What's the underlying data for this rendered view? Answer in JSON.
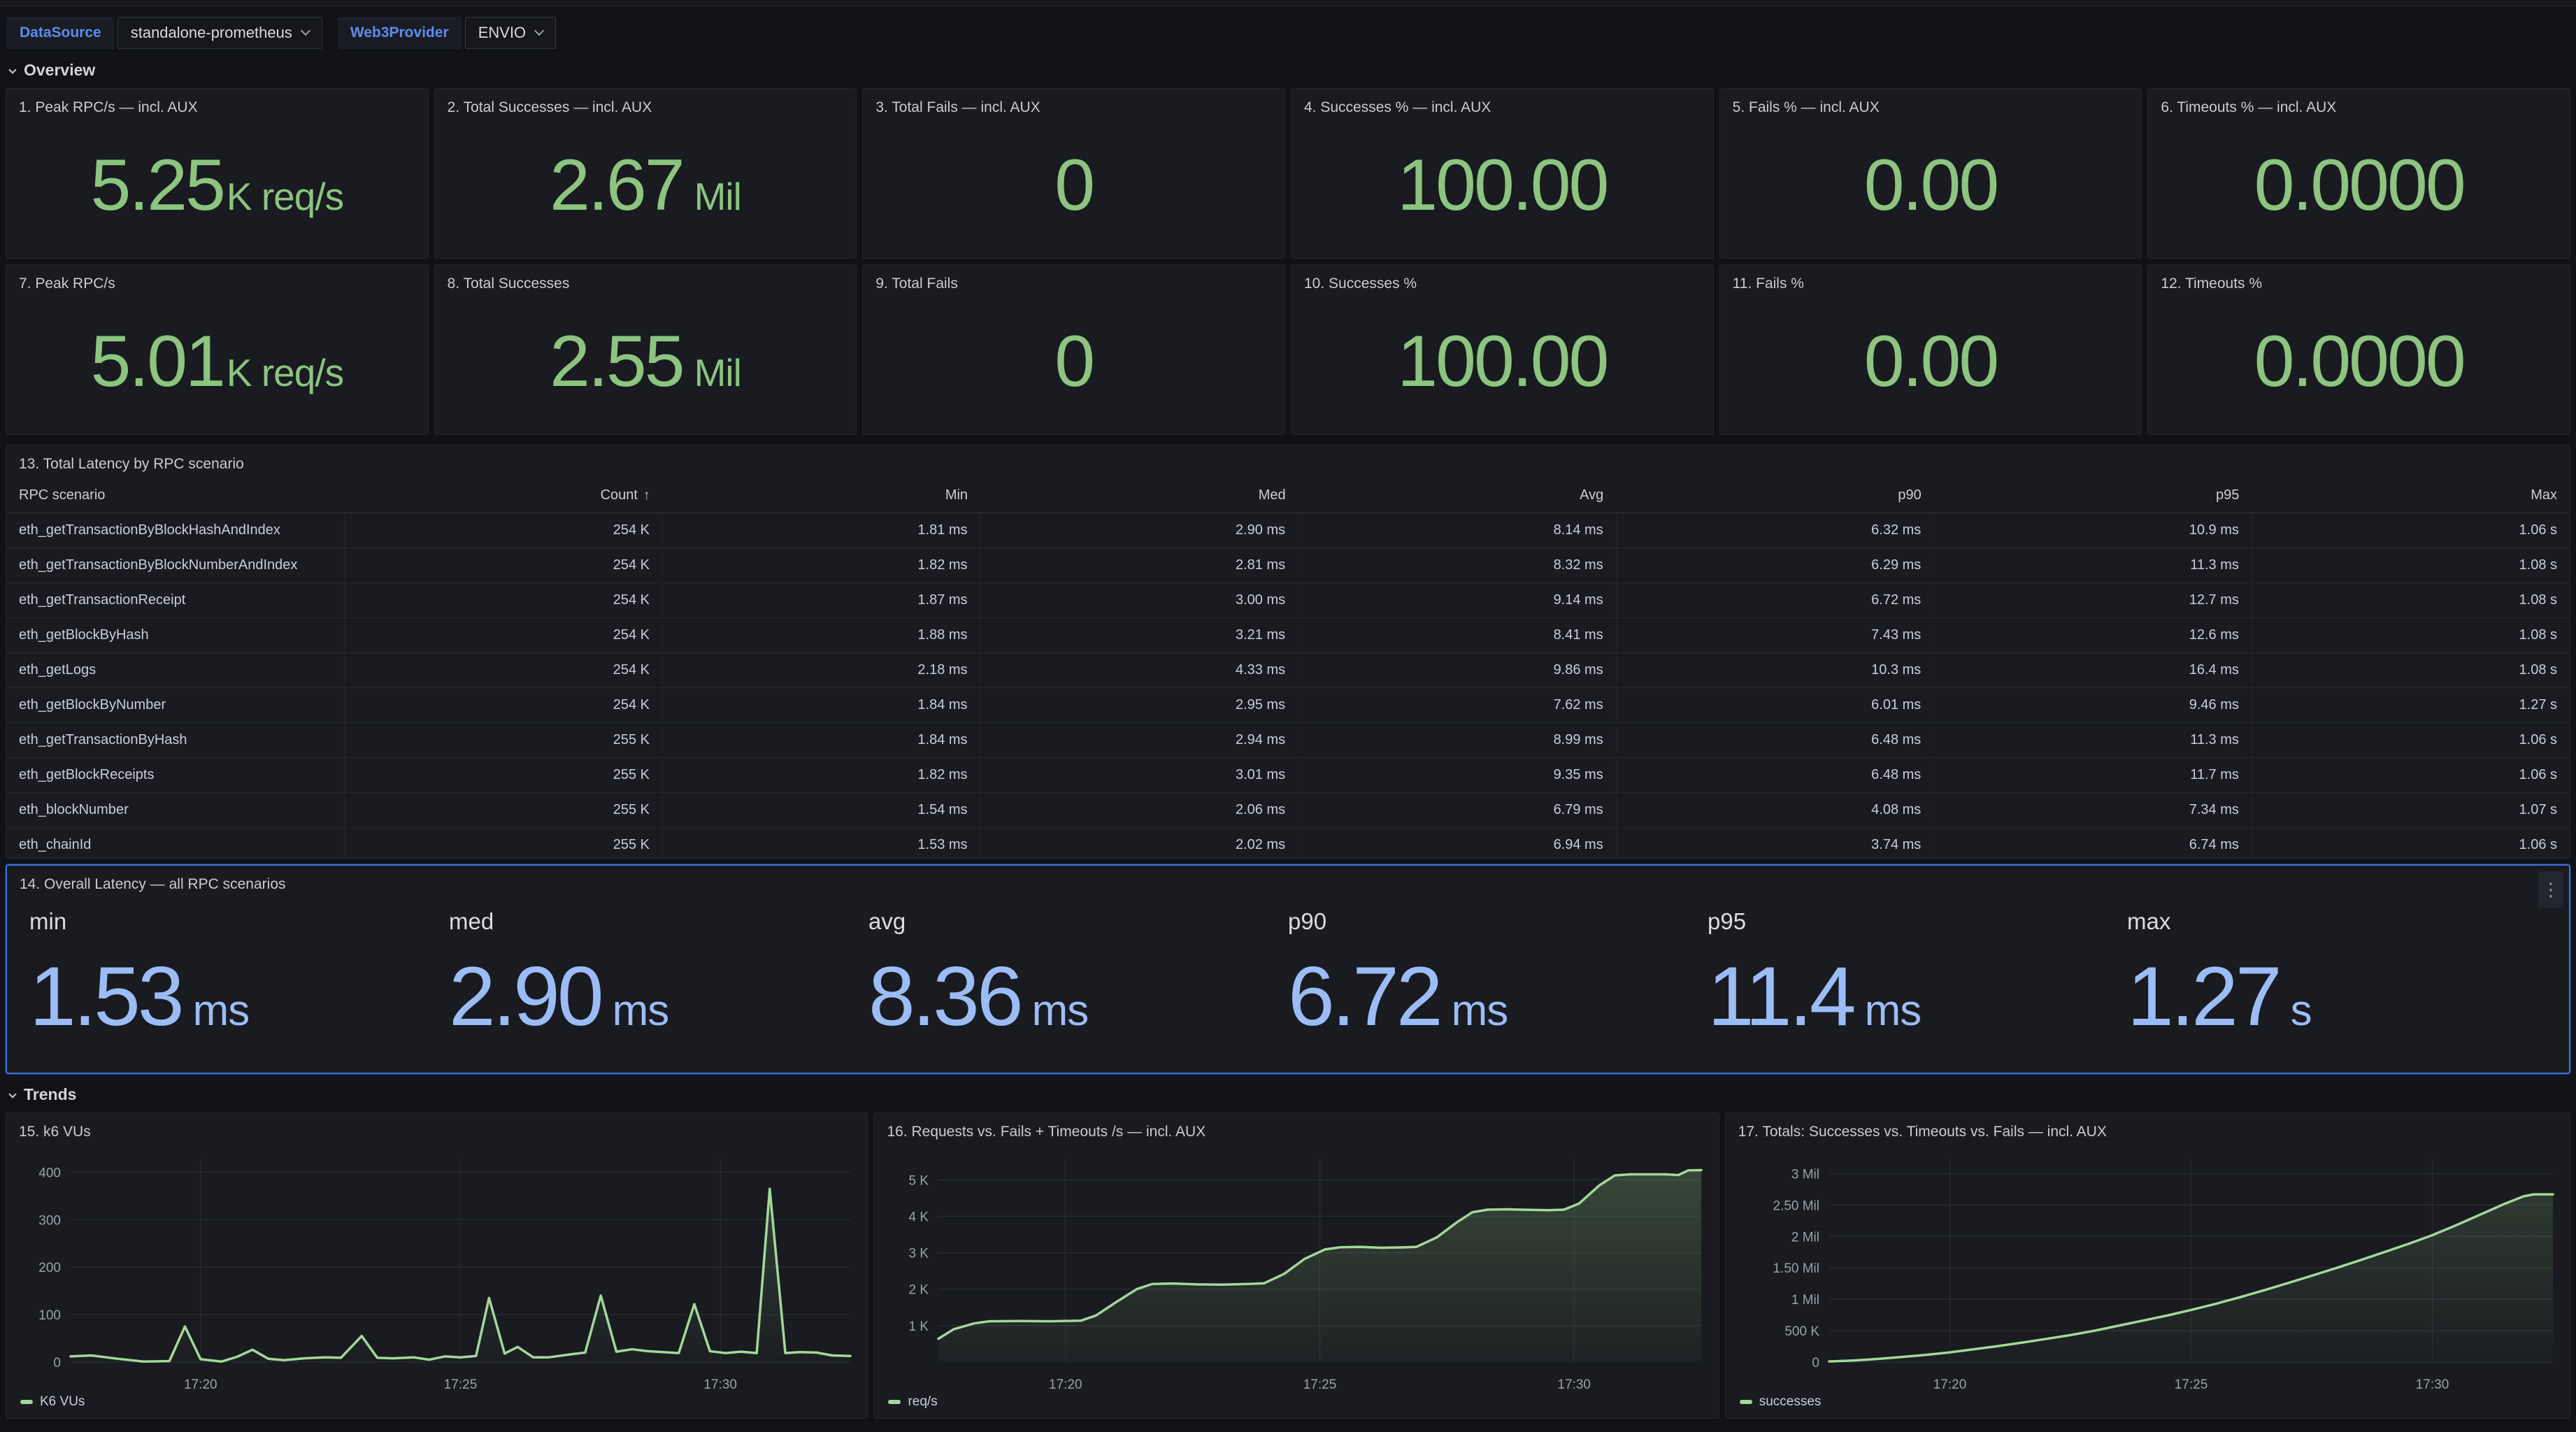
{
  "colors": {
    "stat_green": "#8CC480",
    "stat_blue": "#9CBCF5",
    "line_green": "#A4D79A",
    "label_blue": "#5D8CEF",
    "focus_border": "#3D71DB",
    "panel_bg": "#191B20",
    "page_bg": "#111217",
    "muted_text": "#9DA0A8"
  },
  "topbar": {
    "variables": [
      {
        "label": "DataSource",
        "value": "standalone-prometheus"
      },
      {
        "label": "Web3Provider",
        "value": "ENVIO"
      }
    ]
  },
  "sections": {
    "overview": "Overview",
    "trends": "Trends"
  },
  "stat_rows": [
    [
      {
        "title": "1. Peak RPC/s — incl. AUX",
        "value": "5.25",
        "unit": "K req/s"
      },
      {
        "title": "2. Total Successes — incl. AUX",
        "value": "2.67",
        "unit": "Mil"
      },
      {
        "title": "3. Total Fails — incl. AUX",
        "value": "0",
        "unit": ""
      },
      {
        "title": "4. Successes % — incl. AUX",
        "value": "100.00",
        "unit": ""
      },
      {
        "title": "5. Fails % — incl. AUX",
        "value": "0.00",
        "unit": ""
      },
      {
        "title": "6. Timeouts % — incl. AUX",
        "value": "0.0000",
        "unit": ""
      }
    ],
    [
      {
        "title": "7. Peak RPC/s",
        "value": "5.01",
        "unit": "K req/s"
      },
      {
        "title": "8. Total Successes",
        "value": "2.55",
        "unit": "Mil"
      },
      {
        "title": "9. Total Fails",
        "value": "0",
        "unit": ""
      },
      {
        "title": "10. Successes %",
        "value": "100.00",
        "unit": ""
      },
      {
        "title": "11. Fails %",
        "value": "0.00",
        "unit": ""
      },
      {
        "title": "12. Timeouts %",
        "value": "0.0000",
        "unit": ""
      }
    ]
  ],
  "table": {
    "title": "13. Total Latency by RPC scenario",
    "columns": [
      "RPC scenario",
      "Count",
      "Min",
      "Med",
      "Avg",
      "p90",
      "p95",
      "Max"
    ],
    "sorted_column": "Count",
    "sort_arrow": "↑",
    "rows": [
      [
        "eth_getTransactionByBlockHashAndIndex",
        "254 K",
        "1.81 ms",
        "2.90 ms",
        "8.14 ms",
        "6.32 ms",
        "10.9 ms",
        "1.06 s"
      ],
      [
        "eth_getTransactionByBlockNumberAndIndex",
        "254 K",
        "1.82 ms",
        "2.81 ms",
        "8.32 ms",
        "6.29 ms",
        "11.3 ms",
        "1.08 s"
      ],
      [
        "eth_getTransactionReceipt",
        "254 K",
        "1.87 ms",
        "3.00 ms",
        "9.14 ms",
        "6.72 ms",
        "12.7 ms",
        "1.08 s"
      ],
      [
        "eth_getBlockByHash",
        "254 K",
        "1.88 ms",
        "3.21 ms",
        "8.41 ms",
        "7.43 ms",
        "12.6 ms",
        "1.08 s"
      ],
      [
        "eth_getLogs",
        "254 K",
        "2.18 ms",
        "4.33 ms",
        "9.86 ms",
        "10.3 ms",
        "16.4 ms",
        "1.08 s"
      ],
      [
        "eth_getBlockByNumber",
        "254 K",
        "1.84 ms",
        "2.95 ms",
        "7.62 ms",
        "6.01 ms",
        "9.46 ms",
        "1.27 s"
      ],
      [
        "eth_getTransactionByHash",
        "255 K",
        "1.84 ms",
        "2.94 ms",
        "8.99 ms",
        "6.48 ms",
        "11.3 ms",
        "1.06 s"
      ],
      [
        "eth_getBlockReceipts",
        "255 K",
        "1.82 ms",
        "3.01 ms",
        "9.35 ms",
        "6.48 ms",
        "11.7 ms",
        "1.06 s"
      ],
      [
        "eth_blockNumber",
        "255 K",
        "1.54 ms",
        "2.06 ms",
        "6.79 ms",
        "4.08 ms",
        "7.34 ms",
        "1.07 s"
      ],
      [
        "eth_chainId",
        "255 K",
        "1.53 ms",
        "2.02 ms",
        "6.94 ms",
        "3.74 ms",
        "6.74 ms",
        "1.06 s"
      ]
    ]
  },
  "overall": {
    "title": "14. Overall Latency — all RPC scenarios",
    "stats": [
      {
        "label": "min",
        "value": "1.53",
        "unit": "ms"
      },
      {
        "label": "med",
        "value": "2.90",
        "unit": "ms"
      },
      {
        "label": "avg",
        "value": "8.36",
        "unit": "ms"
      },
      {
        "label": "p90",
        "value": "6.72",
        "unit": "ms"
      },
      {
        "label": "p95",
        "value": "11.4",
        "unit": "ms"
      },
      {
        "label": "max",
        "value": "1.27",
        "unit": "s"
      }
    ]
  },
  "chart_data": [
    {
      "type": "line",
      "title": "15. k6 VUs",
      "legend": "K6 VUs",
      "line_color": "#A4D79A",
      "area_top": "rgba(140,196,128,0.22)",
      "area_bottom": "rgba(140,196,128,0.02)",
      "xrange": [
        0,
        15
      ],
      "yrange": [
        0,
        430
      ],
      "left_pad": 92,
      "grid": true,
      "legend_position": "bottom-left",
      "yticks": [
        {
          "v": 0,
          "label": "0"
        },
        {
          "v": 100,
          "label": "100"
        },
        {
          "v": 200,
          "label": "200"
        },
        {
          "v": 300,
          "label": "300"
        },
        {
          "v": 400,
          "label": "400"
        }
      ],
      "xticks": [
        {
          "t": 2.5,
          "label": "17:20"
        },
        {
          "t": 7.5,
          "label": "17:25"
        },
        {
          "t": 12.5,
          "label": "17:30"
        }
      ],
      "points": [
        [
          0,
          12
        ],
        [
          0.4,
          14
        ],
        [
          0.9,
          7
        ],
        [
          1.4,
          1
        ],
        [
          1.9,
          2
        ],
        [
          2.2,
          75
        ],
        [
          2.5,
          6
        ],
        [
          2.9,
          1
        ],
        [
          3.2,
          11
        ],
        [
          3.5,
          26
        ],
        [
          3.8,
          7
        ],
        [
          4.1,
          4
        ],
        [
          4.5,
          8
        ],
        [
          4.9,
          10
        ],
        [
          5.2,
          9
        ],
        [
          5.6,
          55
        ],
        [
          5.9,
          9
        ],
        [
          6.2,
          8
        ],
        [
          6.6,
          10
        ],
        [
          6.9,
          5
        ],
        [
          7.2,
          12
        ],
        [
          7.5,
          10
        ],
        [
          7.8,
          13
        ],
        [
          8.05,
          135
        ],
        [
          8.35,
          18
        ],
        [
          8.6,
          32
        ],
        [
          8.9,
          10
        ],
        [
          9.2,
          10
        ],
        [
          9.6,
          16
        ],
        [
          9.9,
          20
        ],
        [
          10.2,
          140
        ],
        [
          10.5,
          22
        ],
        [
          10.8,
          27
        ],
        [
          11.1,
          23
        ],
        [
          11.4,
          21
        ],
        [
          11.7,
          19
        ],
        [
          12.0,
          122
        ],
        [
          12.3,
          23
        ],
        [
          12.6,
          19
        ],
        [
          12.9,
          22
        ],
        [
          13.2,
          19
        ],
        [
          13.45,
          365
        ],
        [
          13.75,
          19
        ],
        [
          14.05,
          21
        ],
        [
          14.35,
          20
        ],
        [
          14.65,
          14
        ],
        [
          15,
          13
        ]
      ]
    },
    {
      "type": "line",
      "title": "16. Requests vs. Fails + Timeouts /s — incl. AUX",
      "legend": "req/s",
      "line_color": "#A4D79A",
      "area_top": "rgba(140,196,128,0.26)",
      "area_bottom": "rgba(140,196,128,0.04)",
      "xrange": [
        0,
        15
      ],
      "yrange": [
        0,
        5600
      ],
      "left_pad": 92,
      "grid": true,
      "legend_position": "bottom-left",
      "yticks": [
        {
          "v": 1000,
          "label": "1 K"
        },
        {
          "v": 2000,
          "label": "2 K"
        },
        {
          "v": 3000,
          "label": "3 K"
        },
        {
          "v": 4000,
          "label": "4 K"
        },
        {
          "v": 5000,
          "label": "5 K"
        }
      ],
      "xticks": [
        {
          "t": 2.5,
          "label": "17:20"
        },
        {
          "t": 7.5,
          "label": "17:25"
        },
        {
          "t": 12.5,
          "label": "17:30"
        }
      ],
      "points": [
        [
          0,
          640
        ],
        [
          0.3,
          900
        ],
        [
          0.7,
          1060
        ],
        [
          1.0,
          1120
        ],
        [
          1.6,
          1125
        ],
        [
          2.2,
          1120
        ],
        [
          2.8,
          1135
        ],
        [
          3.1,
          1280
        ],
        [
          3.5,
          1650
        ],
        [
          3.9,
          2000
        ],
        [
          4.2,
          2140
        ],
        [
          4.6,
          2155
        ],
        [
          5.1,
          2130
        ],
        [
          5.6,
          2125
        ],
        [
          6.1,
          2145
        ],
        [
          6.4,
          2160
        ],
        [
          6.8,
          2420
        ],
        [
          7.2,
          2830
        ],
        [
          7.6,
          3090
        ],
        [
          7.9,
          3150
        ],
        [
          8.3,
          3160
        ],
        [
          8.7,
          3135
        ],
        [
          9.1,
          3145
        ],
        [
          9.4,
          3160
        ],
        [
          9.8,
          3420
        ],
        [
          10.2,
          3840
        ],
        [
          10.5,
          4110
        ],
        [
          10.8,
          4180
        ],
        [
          11.2,
          4190
        ],
        [
          11.6,
          4175
        ],
        [
          12.0,
          4165
        ],
        [
          12.3,
          4180
        ],
        [
          12.6,
          4350
        ],
        [
          13.0,
          4850
        ],
        [
          13.3,
          5120
        ],
        [
          13.6,
          5150
        ],
        [
          14.0,
          5150
        ],
        [
          14.3,
          5150
        ],
        [
          14.55,
          5130
        ],
        [
          14.75,
          5260
        ],
        [
          15,
          5265
        ]
      ]
    },
    {
      "type": "line",
      "title": "17. Totals: Successes vs. Timeouts vs. Fails — incl. AUX",
      "legend": "successes",
      "line_color": "#A4D79A",
      "area_top": "rgba(140,196,128,0.18)",
      "area_bottom": "rgba(140,196,128,0.02)",
      "xrange": [
        0,
        15
      ],
      "yrange": [
        0,
        3250000
      ],
      "left_pad": 148,
      "grid": true,
      "legend_position": "bottom-left",
      "yticks": [
        {
          "v": 0,
          "label": "0"
        },
        {
          "v": 500000,
          "label": "500 K"
        },
        {
          "v": 1000000,
          "label": "1 Mil"
        },
        {
          "v": 1500000,
          "label": "1.50 Mil"
        },
        {
          "v": 2000000,
          "label": "2 Mil"
        },
        {
          "v": 2500000,
          "label": "2.50 Mil"
        },
        {
          "v": 3000000,
          "label": "3 Mil"
        }
      ],
      "xticks": [
        {
          "t": 2.5,
          "label": "17:20"
        },
        {
          "t": 7.5,
          "label": "17:25"
        },
        {
          "t": 12.5,
          "label": "17:30"
        }
      ],
      "points": [
        [
          0,
          10000
        ],
        [
          0.5,
          25000
        ],
        [
          1,
          50000
        ],
        [
          1.5,
          80000
        ],
        [
          2,
          115000
        ],
        [
          2.5,
          155000
        ],
        [
          3,
          205000
        ],
        [
          3.5,
          255000
        ],
        [
          4,
          310000
        ],
        [
          4.5,
          370000
        ],
        [
          5,
          430000
        ],
        [
          5.5,
          500000
        ],
        [
          6,
          580000
        ],
        [
          6.5,
          660000
        ],
        [
          7,
          740000
        ],
        [
          7.5,
          830000
        ],
        [
          8,
          925000
        ],
        [
          8.5,
          1030000
        ],
        [
          9,
          1140000
        ],
        [
          9.5,
          1255000
        ],
        [
          10,
          1375000
        ],
        [
          10.5,
          1495000
        ],
        [
          11,
          1620000
        ],
        [
          11.5,
          1750000
        ],
        [
          12,
          1880000
        ],
        [
          12.5,
          2020000
        ],
        [
          13,
          2180000
        ],
        [
          13.5,
          2350000
        ],
        [
          14,
          2520000
        ],
        [
          14.4,
          2640000
        ],
        [
          14.6,
          2670000
        ],
        [
          15,
          2670000
        ]
      ]
    }
  ]
}
